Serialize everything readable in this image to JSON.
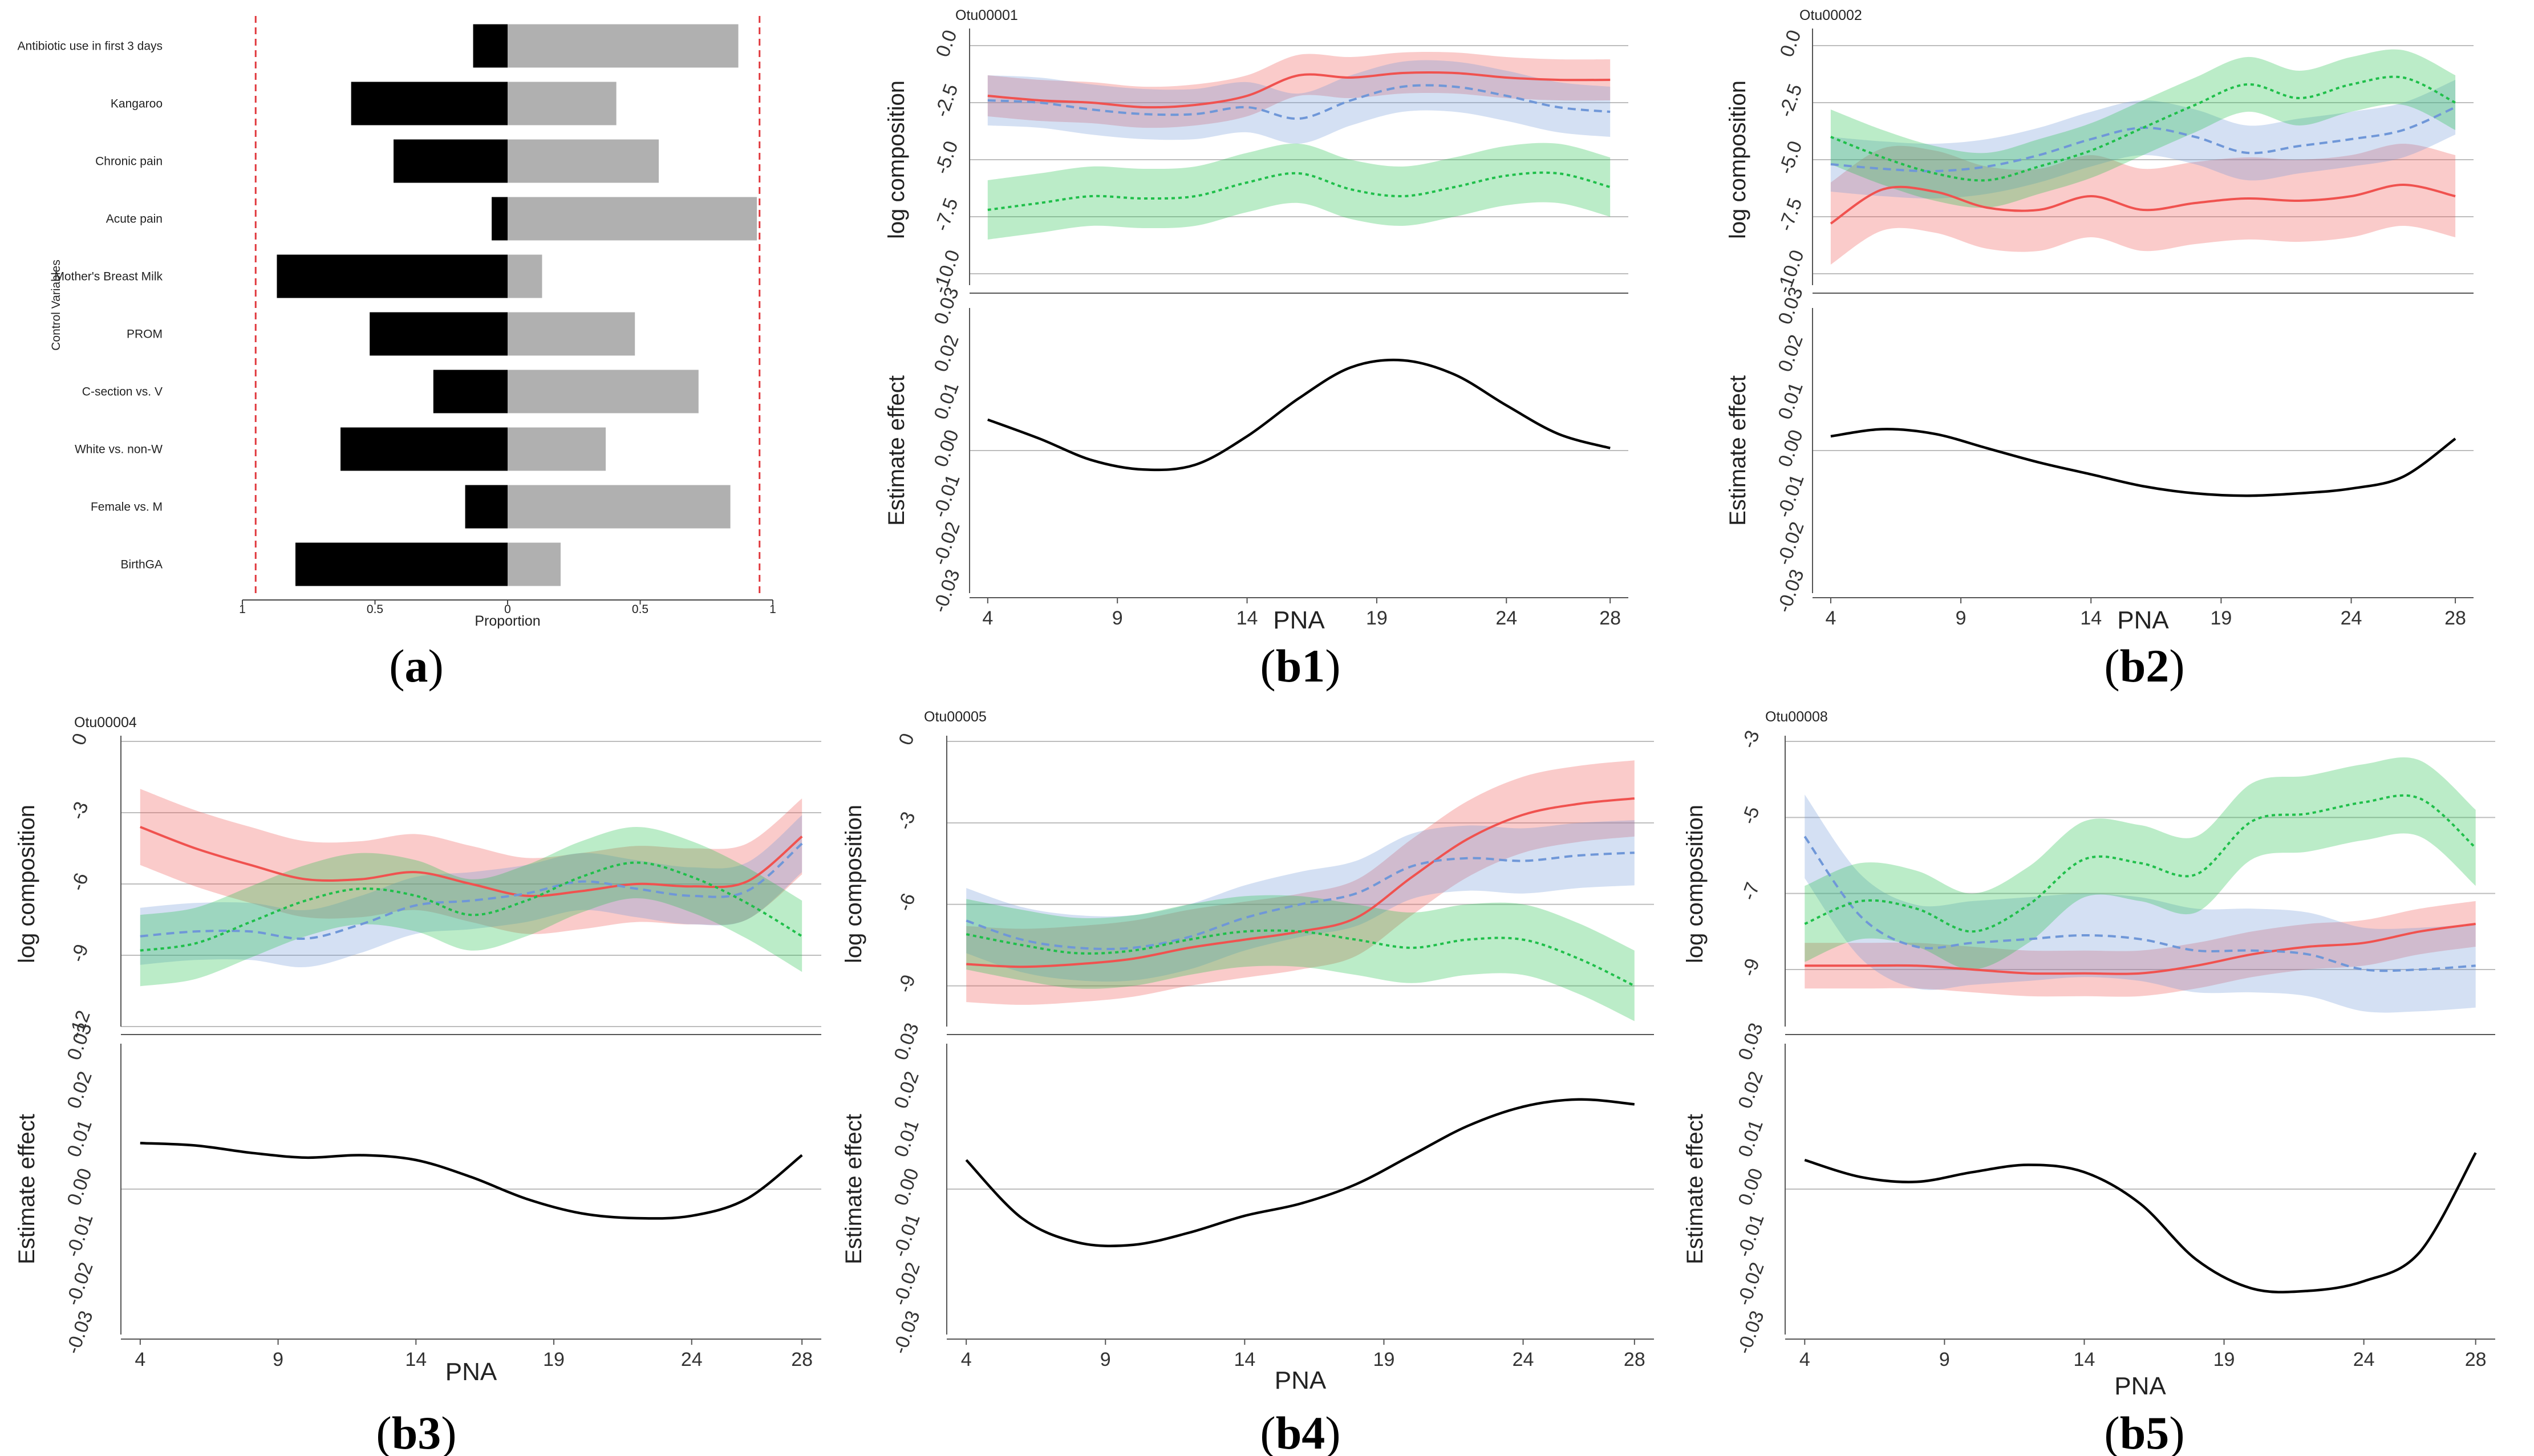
{
  "panel_a": {
    "caption_letter": "a",
    "chart_data": {
      "type": "bar",
      "orientation": "horizontal-diverging",
      "ylabel": "Control Variables",
      "xlabel": "Proportion",
      "xlim": [
        -1,
        1
      ],
      "x_ticks": [
        -1,
        -0.5,
        0,
        0.5,
        1
      ],
      "x_tick_labels": [
        "1",
        "0.5",
        "0",
        "0.5",
        "1"
      ],
      "threshold_lines": [
        -0.95,
        0.95
      ],
      "categories": [
        "Antibiotic use in first 3 days",
        "Kangaroo",
        "Chronic pain",
        "Acute pain",
        "Mother's Breast Milk",
        "PROM",
        "C-section vs. V",
        "White vs. non-W",
        "Female vs. M",
        "BirthGA"
      ],
      "series": [
        {
          "color": "#000000",
          "values": [
            -0.13,
            -0.59,
            -0.43,
            -0.06,
            -0.87,
            -0.52,
            -0.28,
            -0.63,
            -0.16,
            -0.8
          ]
        },
        {
          "color": "#b0b0b0",
          "values": [
            0.87,
            0.41,
            0.57,
            0.94,
            0.13,
            0.48,
            0.72,
            0.37,
            0.84,
            0.2
          ]
        }
      ]
    }
  },
  "panels": [
    {
      "caption": "b1",
      "title": "Otu00001",
      "top": {
        "ylabel": "log composition",
        "yticks": [
          0,
          -2.5,
          -5,
          -7.5,
          -10
        ],
        "ytick_labels": [
          "0.0",
          "-2.5",
          "-5.0",
          "-7.5",
          "-10.0"
        ],
        "ylim": [
          -10.5,
          0.5
        ]
      },
      "bottom": {
        "ylabel": "Estimate effect",
        "yticks": [
          0.03,
          0.02,
          0.01,
          0,
          -0.01,
          -0.02,
          -0.03
        ],
        "ytick_labels": [
          "0.03",
          "0.02",
          "0.01",
          "0.00",
          "-0.01",
          "-0.02",
          "-0.03"
        ],
        "ylim": [
          -0.03,
          0.03
        ]
      },
      "xlabel": "PNA",
      "xticks": [
        4,
        9,
        14,
        19,
        24,
        28
      ],
      "chart_data": {
        "type": "line",
        "x": [
          4,
          6,
          8,
          10,
          12,
          14,
          16,
          18,
          20,
          22,
          24,
          26,
          28
        ],
        "series": [
          {
            "color": "#f0524f",
            "style": "solid",
            "values": [
              -2.2,
              -2.4,
              -2.5,
              -2.7,
              -2.6,
              -2.2,
              -1.3,
              -1.4,
              -1.2,
              -1.2,
              -1.4,
              -1.5,
              -1.5
            ],
            "band": 0.9
          },
          {
            "color": "#6f97d8",
            "style": "dashed",
            "values": [
              -2.4,
              -2.5,
              -2.8,
              -3.0,
              -3.0,
              -2.7,
              -3.2,
              -2.4,
              -1.8,
              -1.8,
              -2.2,
              -2.7,
              -2.9
            ],
            "band": 1.1
          },
          {
            "color": "#1fbf4a",
            "style": "dotted",
            "values": [
              -7.2,
              -6.9,
              -6.6,
              -6.7,
              -6.6,
              -6.0,
              -5.6,
              -6.3,
              -6.6,
              -6.2,
              -5.7,
              -5.6,
              -6.2
            ],
            "band": 1.3
          }
        ],
        "effect": {
          "x": [
            4,
            6,
            8,
            10,
            12,
            14,
            16,
            18,
            20,
            22,
            24,
            26,
            28
          ],
          "values": [
            0.0065,
            0.0025,
            -0.002,
            -0.004,
            -0.003,
            0.003,
            0.011,
            0.0175,
            0.019,
            0.016,
            0.0095,
            0.0035,
            0.0005
          ]
        }
      }
    },
    {
      "caption": "b2",
      "title": "Otu00002",
      "top": {
        "ylabel": "log composition",
        "yticks": [
          0,
          -2.5,
          -5,
          -7.5,
          -10
        ],
        "ytick_labels": [
          "0.0",
          "-2.5",
          "-5.0",
          "-7.5",
          "-10.0"
        ],
        "ylim": [
          -10.5,
          0.5
        ]
      },
      "bottom": {
        "ylabel": "Estimate effect",
        "yticks": [
          0.03,
          0.02,
          0.01,
          0,
          -0.01,
          -0.02,
          -0.03
        ],
        "ytick_labels": [
          "0.03",
          "0.02",
          "0.01",
          "0.00",
          "-0.01",
          "-0.02",
          "-0.03"
        ],
        "ylim": [
          -0.03,
          0.03
        ]
      },
      "xlabel": "PNA",
      "xticks": [
        4,
        9,
        14,
        19,
        24,
        28
      ],
      "chart_data": {
        "type": "line",
        "x": [
          4,
          6,
          8,
          10,
          12,
          14,
          16,
          18,
          20,
          22,
          24,
          26,
          28
        ],
        "series": [
          {
            "color": "#f0524f",
            "style": "solid",
            "values": [
              -7.8,
              -6.3,
              -6.4,
              -7.1,
              -7.2,
              -6.6,
              -7.2,
              -6.9,
              -6.7,
              -6.8,
              -6.6,
              -6.1,
              -6.6
            ],
            "band": 1.8
          },
          {
            "color": "#6f97d8",
            "style": "dashed",
            "values": [
              -5.2,
              -5.4,
              -5.5,
              -5.3,
              -4.8,
              -4.1,
              -3.6,
              -4.0,
              -4.7,
              -4.4,
              -4.1,
              -3.7,
              -2.7
            ],
            "band": 1.2
          },
          {
            "color": "#1fbf4a",
            "style": "dotted",
            "values": [
              -4.0,
              -4.9,
              -5.6,
              -5.9,
              -5.3,
              -4.6,
              -3.6,
              -2.6,
              -1.7,
              -2.3,
              -1.7,
              -1.4,
              -2.5
            ],
            "band": 1.2
          }
        ],
        "effect": {
          "x": [
            4,
            6,
            8,
            10,
            12,
            14,
            16,
            18,
            20,
            22,
            24,
            26,
            28
          ],
          "values": [
            0.003,
            0.0045,
            0.0035,
            0.0005,
            -0.0025,
            -0.005,
            -0.0075,
            -0.009,
            -0.0095,
            -0.009,
            -0.008,
            -0.0055,
            0.0025
          ]
        }
      }
    },
    {
      "caption": "b3",
      "title": "Otu00004",
      "top": {
        "ylabel": "log composition",
        "yticks": [
          0,
          -3,
          -6,
          -9,
          -12
        ],
        "ytick_labels": [
          "0",
          "-3",
          "-6",
          "-9",
          "-12"
        ],
        "ylim": [
          -12,
          0
        ]
      },
      "bottom": {
        "ylabel": "Estimate effect",
        "yticks": [
          0.03,
          0.02,
          0.01,
          0,
          -0.01,
          -0.02,
          -0.03
        ],
        "ytick_labels": [
          "0.03",
          "0.02",
          "0.01",
          "0.00",
          "-0.01",
          "-0.02",
          "-0.03"
        ],
        "ylim": [
          -0.03,
          0.03
        ]
      },
      "xlabel": "PNA",
      "xticks": [
        4,
        9,
        14,
        19,
        24,
        28
      ],
      "chart_data": {
        "type": "line",
        "x": [
          4,
          6,
          8,
          10,
          12,
          14,
          16,
          18,
          20,
          22,
          24,
          26,
          28
        ],
        "series": [
          {
            "color": "#f0524f",
            "style": "solid",
            "values": [
              -3.6,
              -4.5,
              -5.2,
              -5.8,
              -5.8,
              -5.5,
              -6.0,
              -6.5,
              -6.3,
              -6.0,
              -6.1,
              -5.9,
              -4.0
            ],
            "band": 1.6
          },
          {
            "color": "#6f97d8",
            "style": "dashed",
            "values": [
              -8.2,
              -8.0,
              -8.0,
              -8.3,
              -7.7,
              -6.9,
              -6.7,
              -6.4,
              -5.9,
              -6.2,
              -6.5,
              -6.3,
              -4.3
            ],
            "band": 1.2
          },
          {
            "color": "#1fbf4a",
            "style": "dotted",
            "values": [
              -8.8,
              -8.5,
              -7.6,
              -6.7,
              -6.2,
              -6.5,
              -7.3,
              -6.7,
              -5.7,
              -5.1,
              -5.7,
              -6.8,
              -8.2
            ],
            "band": 1.5
          }
        ],
        "effect": {
          "x": [
            4,
            6,
            8,
            10,
            12,
            14,
            16,
            18,
            20,
            22,
            24,
            26,
            28
          ],
          "values": [
            0.0095,
            0.009,
            0.0075,
            0.0065,
            0.007,
            0.006,
            0.0025,
            -0.002,
            -0.005,
            -0.006,
            -0.0055,
            -0.002,
            0.007
          ]
        }
      }
    },
    {
      "caption": "b4",
      "title": "Otu00005",
      "top": {
        "ylabel": "log composition",
        "yticks": [
          0,
          -3,
          -6,
          -9
        ],
        "ytick_labels": [
          "0",
          "-3",
          "-6",
          "-9"
        ],
        "ylim": [
          -10.5,
          0
        ]
      },
      "bottom": {
        "ylabel": "Estimate effect",
        "yticks": [
          0.03,
          0.02,
          0.01,
          0,
          -0.01,
          -0.02,
          -0.03
        ],
        "ytick_labels": [
          "0.03",
          "0.02",
          "0.01",
          "0.00",
          "-0.01",
          "-0.02",
          "-0.03"
        ],
        "ylim": [
          -0.03,
          0.03
        ]
      },
      "xlabel": "PNA",
      "xticks": [
        4,
        9,
        14,
        19,
        24,
        28
      ],
      "chart_data": {
        "type": "line",
        "x": [
          4,
          6,
          8,
          10,
          12,
          14,
          16,
          18,
          20,
          22,
          24,
          26,
          28
        ],
        "series": [
          {
            "color": "#f0524f",
            "style": "solid",
            "values": [
              -8.2,
              -8.3,
              -8.2,
              -8.0,
              -7.6,
              -7.3,
              -7.0,
              -6.5,
              -5.0,
              -3.6,
              -2.7,
              -2.3,
              -2.1
            ],
            "band": 1.4
          },
          {
            "color": "#6f97d8",
            "style": "dashed",
            "values": [
              -6.6,
              -7.3,
              -7.6,
              -7.6,
              -7.2,
              -6.5,
              -6.0,
              -5.6,
              -4.6,
              -4.3,
              -4.4,
              -4.2,
              -4.1
            ],
            "band": 1.2
          },
          {
            "color": "#1fbf4a",
            "style": "dotted",
            "values": [
              -7.1,
              -7.5,
              -7.8,
              -7.7,
              -7.3,
              -7.0,
              -7.0,
              -7.3,
              -7.6,
              -7.3,
              -7.3,
              -8.0,
              -9.0
            ],
            "band": 1.3
          }
        ],
        "effect": {
          "x": [
            4,
            6,
            8,
            10,
            12,
            14,
            16,
            18,
            20,
            22,
            24,
            26,
            28
          ],
          "values": [
            0.006,
            -0.006,
            -0.011,
            -0.0115,
            -0.009,
            -0.0055,
            -0.003,
            0.001,
            0.007,
            0.013,
            0.017,
            0.0185,
            0.0175
          ]
        }
      }
    },
    {
      "caption": "b5",
      "title": "Otu00008",
      "top": {
        "ylabel": "log composition",
        "yticks": [
          -3,
          -5,
          -7,
          -9
        ],
        "ytick_labels": [
          "-3",
          "-5",
          "-7",
          "-9"
        ],
        "ylim": [
          -10.5,
          -3
        ]
      },
      "bottom": {
        "ylabel": "Estimate effect",
        "yticks": [
          0.03,
          0.02,
          0.01,
          0,
          -0.01,
          -0.02,
          -0.03
        ],
        "ytick_labels": [
          "0.03",
          "0.02",
          "0.01",
          "0.00",
          "-0.01",
          "-0.02",
          "-0.03"
        ],
        "ylim": [
          -0.03,
          0.03
        ]
      },
      "xlabel": "PNA",
      "xticks": [
        4,
        9,
        14,
        19,
        24,
        28
      ],
      "chart_data": {
        "type": "line",
        "x": [
          4,
          6,
          8,
          10,
          12,
          14,
          16,
          18,
          20,
          22,
          24,
          26,
          28
        ],
        "series": [
          {
            "color": "#f0524f",
            "style": "solid",
            "values": [
              -8.9,
              -8.9,
              -8.9,
              -9.0,
              -9.1,
              -9.1,
              -9.1,
              -8.9,
              -8.6,
              -8.4,
              -8.3,
              -8.0,
              -7.8
            ],
            "band": 0.6
          },
          {
            "color": "#6f97d8",
            "style": "dashed",
            "values": [
              -5.5,
              -7.6,
              -8.4,
              -8.3,
              -8.2,
              -8.1,
              -8.2,
              -8.5,
              -8.5,
              -8.6,
              -9.0,
              -9.0,
              -8.9
            ],
            "band": 1.1
          },
          {
            "color": "#1fbf4a",
            "style": "dotted",
            "values": [
              -7.8,
              -7.2,
              -7.4,
              -8.0,
              -7.3,
              -6.1,
              -6.2,
              -6.5,
              -5.1,
              -4.9,
              -4.6,
              -4.5,
              -5.8
            ],
            "band": 1.0
          }
        ],
        "effect": {
          "x": [
            4,
            6,
            8,
            10,
            12,
            14,
            16,
            18,
            20,
            22,
            24,
            26,
            28
          ],
          "values": [
            0.006,
            0.0025,
            0.0015,
            0.0035,
            0.005,
            0.0035,
            -0.003,
            -0.0145,
            -0.0205,
            -0.021,
            -0.019,
            -0.013,
            0.0075
          ]
        }
      }
    }
  ]
}
